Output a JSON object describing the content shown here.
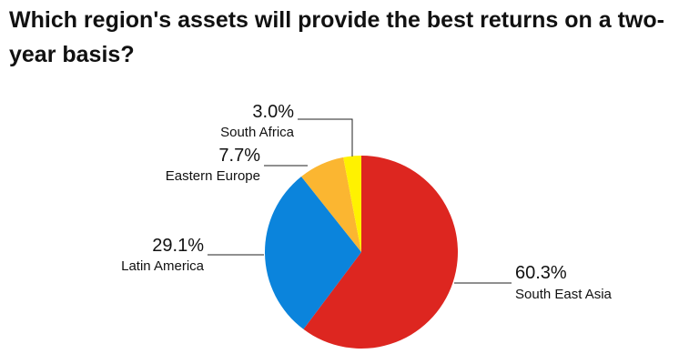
{
  "chart_data": {
    "type": "pie",
    "title": "Which region's assets will provide the best returns on a two-year basis?",
    "slices": [
      {
        "label": "South East Asia",
        "value": 60.3,
        "value_label": "60.3%",
        "color": "#dd2620"
      },
      {
        "label": "Latin America",
        "value": 29.1,
        "value_label": "29.1%",
        "color": "#0b84dc"
      },
      {
        "label": "Eastern Europe",
        "value": 7.7,
        "value_label": "7.7%",
        "color": "#fbb631"
      },
      {
        "label": "South Africa",
        "value": 3.0,
        "value_label": "3.0%",
        "color": "#fff200"
      }
    ],
    "legend": "none"
  }
}
